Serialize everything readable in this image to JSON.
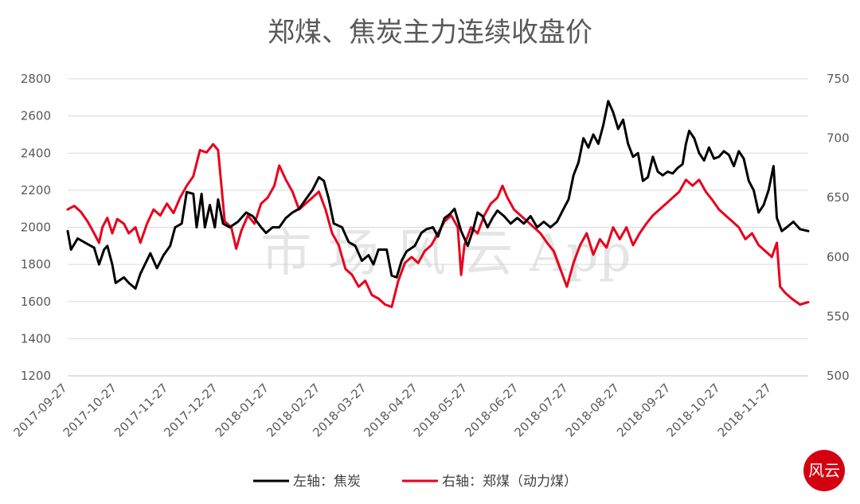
{
  "chart_data": {
    "type": "line",
    "title": "郑煤、焦炭主力连续收盘价",
    "x_ticks": [
      "2017-09-27",
      "2017-10-27",
      "2017-11-27",
      "2017-12-27",
      "2018-01-27",
      "2018-02-27",
      "2018-03-27",
      "2018-04-27",
      "2018-05-27",
      "2018-06-27",
      "2018-07-27",
      "2018-08-27",
      "2018-09-27",
      "2018-10-27",
      "2018-11-27"
    ],
    "x_range": [
      "2017-09-27",
      "2018-12-19"
    ],
    "left_axis": {
      "ylim": [
        1200,
        2800
      ],
      "ticks": [
        1200,
        1400,
        1600,
        1800,
        2000,
        2200,
        2400,
        2600,
        2800
      ]
    },
    "right_axis": {
      "ylim": [
        500,
        750
      ],
      "ticks": [
        500,
        550,
        600,
        650,
        700,
        750
      ]
    },
    "grid": true,
    "legend_position": "bottom",
    "series": [
      {
        "name": "左轴：焦炭",
        "axis": "left",
        "color": "#000000",
        "points": [
          [
            "2017-09-27",
            1980
          ],
          [
            "2017-09-29",
            1880
          ],
          [
            "2017-10-03",
            1940
          ],
          [
            "2017-10-09",
            1910
          ],
          [
            "2017-10-13",
            1890
          ],
          [
            "2017-10-16",
            1800
          ],
          [
            "2017-10-19",
            1880
          ],
          [
            "2017-10-21",
            1900
          ],
          [
            "2017-10-24",
            1800
          ],
          [
            "2017-10-26",
            1700
          ],
          [
            "2017-10-31",
            1730
          ],
          [
            "2017-11-03",
            1700
          ],
          [
            "2017-11-07",
            1670
          ],
          [
            "2017-11-10",
            1750
          ],
          [
            "2017-11-16",
            1860
          ],
          [
            "2017-11-20",
            1780
          ],
          [
            "2017-11-24",
            1850
          ],
          [
            "2017-11-28",
            1900
          ],
          [
            "2017-12-01",
            2000
          ],
          [
            "2017-12-05",
            2020
          ],
          [
            "2017-12-08",
            2190
          ],
          [
            "2017-12-12",
            2180
          ],
          [
            "2017-12-14",
            2000
          ],
          [
            "2017-12-17",
            2180
          ],
          [
            "2017-12-19",
            2000
          ],
          [
            "2017-12-22",
            2120
          ],
          [
            "2017-12-25",
            2000
          ],
          [
            "2017-12-27",
            2150
          ],
          [
            "2017-12-30",
            2020
          ],
          [
            "2018-01-03",
            2000
          ],
          [
            "2018-01-08",
            2030
          ],
          [
            "2018-01-13",
            2080
          ],
          [
            "2018-01-17",
            2060
          ],
          [
            "2018-01-22",
            2000
          ],
          [
            "2018-01-25",
            1970
          ],
          [
            "2018-01-29",
            2000
          ],
          [
            "2018-02-02",
            2000
          ],
          [
            "2018-02-06",
            2050
          ],
          [
            "2018-02-10",
            2080
          ],
          [
            "2018-02-14",
            2100
          ],
          [
            "2018-02-18",
            2150
          ],
          [
            "2018-02-22",
            2200
          ],
          [
            "2018-02-26",
            2270
          ],
          [
            "2018-03-01",
            2250
          ],
          [
            "2018-03-04",
            2150
          ],
          [
            "2018-03-07",
            2020
          ],
          [
            "2018-03-12",
            2000
          ],
          [
            "2018-03-16",
            1920
          ],
          [
            "2018-03-20",
            1900
          ],
          [
            "2018-03-24",
            1820
          ],
          [
            "2018-03-28",
            1850
          ],
          [
            "2018-03-31",
            1800
          ],
          [
            "2018-04-03",
            1880
          ],
          [
            "2018-04-08",
            1880
          ],
          [
            "2018-04-11",
            1740
          ],
          [
            "2018-04-14",
            1730
          ],
          [
            "2018-04-17",
            1820
          ],
          [
            "2018-04-20",
            1870
          ],
          [
            "2018-04-25",
            1900
          ],
          [
            "2018-04-29",
            1970
          ],
          [
            "2018-05-02",
            1990
          ],
          [
            "2018-05-06",
            2000
          ],
          [
            "2018-05-09",
            1950
          ],
          [
            "2018-05-13",
            2050
          ],
          [
            "2018-05-16",
            2070
          ],
          [
            "2018-05-19",
            2100
          ],
          [
            "2018-05-23",
            1980
          ],
          [
            "2018-05-27",
            1900
          ],
          [
            "2018-05-30",
            1980
          ],
          [
            "2018-06-02",
            2080
          ],
          [
            "2018-06-05",
            2060
          ],
          [
            "2018-06-08",
            2000
          ],
          [
            "2018-06-11",
            2050
          ],
          [
            "2018-06-14",
            2090
          ],
          [
            "2018-06-18",
            2060
          ],
          [
            "2018-06-22",
            2020
          ],
          [
            "2018-06-26",
            2050
          ],
          [
            "2018-06-30",
            2020
          ],
          [
            "2018-07-04",
            2060
          ],
          [
            "2018-07-08",
            2000
          ],
          [
            "2018-07-12",
            2030
          ],
          [
            "2018-07-16",
            2000
          ],
          [
            "2018-07-20",
            2030
          ],
          [
            "2018-07-24",
            2100
          ],
          [
            "2018-07-27",
            2150
          ],
          [
            "2018-07-30",
            2280
          ],
          [
            "2018-08-02",
            2350
          ],
          [
            "2018-08-05",
            2480
          ],
          [
            "2018-08-08",
            2430
          ],
          [
            "2018-08-11",
            2500
          ],
          [
            "2018-08-14",
            2450
          ],
          [
            "2018-08-17",
            2550
          ],
          [
            "2018-08-20",
            2680
          ],
          [
            "2018-08-23",
            2620
          ],
          [
            "2018-08-26",
            2530
          ],
          [
            "2018-08-29",
            2580
          ],
          [
            "2018-09-01",
            2450
          ],
          [
            "2018-09-04",
            2380
          ],
          [
            "2018-09-07",
            2400
          ],
          [
            "2018-09-10",
            2250
          ],
          [
            "2018-09-13",
            2270
          ],
          [
            "2018-09-16",
            2380
          ],
          [
            "2018-09-19",
            2300
          ],
          [
            "2018-09-22",
            2280
          ],
          [
            "2018-09-25",
            2300
          ],
          [
            "2018-09-28",
            2290
          ],
          [
            "2018-10-01",
            2320
          ],
          [
            "2018-10-04",
            2340
          ],
          [
            "2018-10-06",
            2450
          ],
          [
            "2018-10-08",
            2520
          ],
          [
            "2018-10-11",
            2480
          ],
          [
            "2018-10-14",
            2400
          ],
          [
            "2018-10-17",
            2360
          ],
          [
            "2018-10-20",
            2430
          ],
          [
            "2018-10-23",
            2370
          ],
          [
            "2018-10-26",
            2380
          ],
          [
            "2018-10-29",
            2410
          ],
          [
            "2018-11-01",
            2390
          ],
          [
            "2018-11-04",
            2330
          ],
          [
            "2018-11-07",
            2410
          ],
          [
            "2018-11-10",
            2370
          ],
          [
            "2018-11-13",
            2250
          ],
          [
            "2018-11-16",
            2200
          ],
          [
            "2018-11-19",
            2080
          ],
          [
            "2018-11-22",
            2120
          ],
          [
            "2018-11-25",
            2200
          ],
          [
            "2018-11-28",
            2330
          ],
          [
            "2018-11-30",
            2050
          ],
          [
            "2018-12-03",
            1980
          ],
          [
            "2018-12-06",
            2000
          ],
          [
            "2018-12-10",
            2030
          ],
          [
            "2018-12-14",
            1990
          ],
          [
            "2018-12-19",
            1980
          ]
        ]
      },
      {
        "name": "右轴：郑煤（动力煤）",
        "axis": "right",
        "color": "#e8001c",
        "points": [
          [
            "2017-09-27",
            640
          ],
          [
            "2017-10-01",
            643
          ],
          [
            "2017-10-05",
            638
          ],
          [
            "2017-10-09",
            630
          ],
          [
            "2017-10-13",
            620
          ],
          [
            "2017-10-16",
            612
          ],
          [
            "2017-10-18",
            625
          ],
          [
            "2017-10-21",
            633
          ],
          [
            "2017-10-24",
            620
          ],
          [
            "2017-10-27",
            632
          ],
          [
            "2017-10-31",
            628
          ],
          [
            "2017-11-03",
            620
          ],
          [
            "2017-11-07",
            625
          ],
          [
            "2017-11-10",
            612
          ],
          [
            "2017-11-14",
            628
          ],
          [
            "2017-11-18",
            640
          ],
          [
            "2017-11-22",
            635
          ],
          [
            "2017-11-26",
            645
          ],
          [
            "2017-11-30",
            637
          ],
          [
            "2017-12-04",
            650
          ],
          [
            "2017-12-08",
            660
          ],
          [
            "2017-12-12",
            668
          ],
          [
            "2017-12-16",
            690
          ],
          [
            "2017-12-20",
            688
          ],
          [
            "2017-12-24",
            695
          ],
          [
            "2017-12-27",
            690
          ],
          [
            "2017-12-31",
            630
          ],
          [
            "2018-01-04",
            625
          ],
          [
            "2018-01-07",
            607
          ],
          [
            "2018-01-10",
            622
          ],
          [
            "2018-01-14",
            635
          ],
          [
            "2018-01-18",
            628
          ],
          [
            "2018-01-22",
            645
          ],
          [
            "2018-01-26",
            650
          ],
          [
            "2018-01-30",
            660
          ],
          [
            "2018-02-02",
            677
          ],
          [
            "2018-02-06",
            665
          ],
          [
            "2018-02-10",
            655
          ],
          [
            "2018-02-14",
            640
          ],
          [
            "2018-02-18",
            645
          ],
          [
            "2018-02-22",
            650
          ],
          [
            "2018-02-26",
            655
          ],
          [
            "2018-03-02",
            640
          ],
          [
            "2018-03-06",
            620
          ],
          [
            "2018-03-10",
            610
          ],
          [
            "2018-03-14",
            590
          ],
          [
            "2018-03-18",
            585
          ],
          [
            "2018-03-22",
            575
          ],
          [
            "2018-03-26",
            580
          ],
          [
            "2018-03-30",
            568
          ],
          [
            "2018-04-03",
            565
          ],
          [
            "2018-04-07",
            560
          ],
          [
            "2018-04-11",
            558
          ],
          [
            "2018-04-15",
            580
          ],
          [
            "2018-04-19",
            595
          ],
          [
            "2018-04-23",
            600
          ],
          [
            "2018-04-27",
            595
          ],
          [
            "2018-05-01",
            605
          ],
          [
            "2018-05-05",
            610
          ],
          [
            "2018-05-09",
            620
          ],
          [
            "2018-05-13",
            630
          ],
          [
            "2018-05-17",
            635
          ],
          [
            "2018-05-21",
            625
          ],
          [
            "2018-05-23",
            585
          ],
          [
            "2018-05-25",
            610
          ],
          [
            "2018-05-29",
            625
          ],
          [
            "2018-06-02",
            620
          ],
          [
            "2018-06-06",
            635
          ],
          [
            "2018-06-10",
            645
          ],
          [
            "2018-06-14",
            650
          ],
          [
            "2018-06-17",
            660
          ],
          [
            "2018-06-20",
            650
          ],
          [
            "2018-06-24",
            640
          ],
          [
            "2018-06-28",
            635
          ],
          [
            "2018-07-02",
            630
          ],
          [
            "2018-07-06",
            625
          ],
          [
            "2018-07-10",
            620
          ],
          [
            "2018-07-14",
            612
          ],
          [
            "2018-07-18",
            605
          ],
          [
            "2018-07-22",
            590
          ],
          [
            "2018-07-26",
            575
          ],
          [
            "2018-07-30",
            595
          ],
          [
            "2018-08-03",
            610
          ],
          [
            "2018-08-07",
            620
          ],
          [
            "2018-08-11",
            602
          ],
          [
            "2018-08-15",
            615
          ],
          [
            "2018-08-19",
            608
          ],
          [
            "2018-08-23",
            625
          ],
          [
            "2018-08-27",
            615
          ],
          [
            "2018-08-31",
            625
          ],
          [
            "2018-09-04",
            610
          ],
          [
            "2018-09-08",
            620
          ],
          [
            "2018-09-12",
            628
          ],
          [
            "2018-09-16",
            635
          ],
          [
            "2018-09-20",
            640
          ],
          [
            "2018-09-24",
            645
          ],
          [
            "2018-09-28",
            650
          ],
          [
            "2018-10-02",
            655
          ],
          [
            "2018-10-06",
            665
          ],
          [
            "2018-10-10",
            660
          ],
          [
            "2018-10-14",
            665
          ],
          [
            "2018-10-18",
            655
          ],
          [
            "2018-10-22",
            648
          ],
          [
            "2018-10-26",
            640
          ],
          [
            "2018-10-30",
            635
          ],
          [
            "2018-11-03",
            630
          ],
          [
            "2018-11-07",
            625
          ],
          [
            "2018-11-11",
            615
          ],
          [
            "2018-11-15",
            620
          ],
          [
            "2018-11-19",
            610
          ],
          [
            "2018-11-23",
            605
          ],
          [
            "2018-11-27",
            600
          ],
          [
            "2018-11-30",
            612
          ],
          [
            "2018-12-02",
            575
          ],
          [
            "2018-12-05",
            570
          ],
          [
            "2018-12-09",
            565
          ],
          [
            "2018-12-14",
            560
          ],
          [
            "2018-12-19",
            562
          ]
        ]
      }
    ]
  },
  "watermark": {
    "text": "市 场 风 云 App"
  },
  "seal": {
    "text": "风云"
  }
}
